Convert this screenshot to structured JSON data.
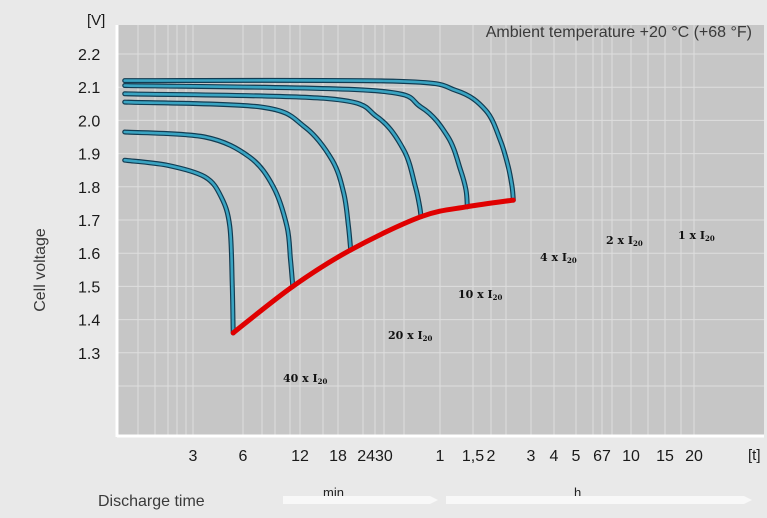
{
  "chart_data": {
    "type": "line",
    "title": "Ambient temperature +20 °C (+68 °F)",
    "ylabel": "Cell voltage",
    "xlabel": "Discharge time",
    "y_unit": "[V]",
    "x_unit": "[t]",
    "ylim": [
      1.2,
      2.2
    ],
    "y_ticks": [
      "2.2",
      "2.1",
      "2.0",
      "1.9",
      "1.8",
      "1.7",
      "1.6",
      "1.5",
      "1.4",
      "1.3"
    ],
    "x_scale": "log",
    "x_ticks_min": [
      "3",
      "6",
      "12",
      "18",
      "2430"
    ],
    "x_ticks_h": [
      "1",
      "1,5",
      "2",
      "3",
      "4",
      "5",
      "67",
      "10",
      "15",
      "20"
    ],
    "x_scale_labels": [
      "min",
      "h"
    ],
    "grid": true,
    "series": [
      {
        "name": "1 x I20",
        "points": [
          [
            0.035,
            2.12
          ],
          [
            3,
            2.118
          ],
          [
            8,
            2.09
          ],
          [
            13,
            2.03
          ],
          [
            16.5,
            1.94
          ],
          [
            18.8,
            1.86
          ],
          [
            20,
            1.8
          ],
          [
            20.4,
            1.76
          ]
        ]
      },
      {
        "name": "2 x I20",
        "points": [
          [
            0.035,
            2.105
          ],
          [
            2,
            2.09
          ],
          [
            4.5,
            2.04
          ],
          [
            7,
            1.95
          ],
          [
            8.6,
            1.85
          ],
          [
            9.4,
            1.79
          ],
          [
            9.6,
            1.74
          ]
        ]
      },
      {
        "name": "4 x I20",
        "points": [
          [
            0.035,
            2.08
          ],
          [
            1,
            2.065
          ],
          [
            2.2,
            2.01
          ],
          [
            3.4,
            1.91
          ],
          [
            4.1,
            1.8
          ],
          [
            4.4,
            1.74
          ],
          [
            4.5,
            1.71
          ]
        ]
      },
      {
        "name": "10 x I20",
        "points": [
          [
            0.035,
            2.055
          ],
          [
            0.33,
            2.04
          ],
          [
            0.67,
            1.98
          ],
          [
            1.05,
            1.88
          ],
          [
            1.27,
            1.78
          ],
          [
            1.37,
            1.68
          ],
          [
            1.42,
            1.61
          ]
        ]
      },
      {
        "name": "20 x I20",
        "points": [
          [
            0.035,
            1.965
          ],
          [
            0.13,
            1.95
          ],
          [
            0.27,
            1.89
          ],
          [
            0.4,
            1.8
          ],
          [
            0.5,
            1.68
          ],
          [
            0.53,
            1.58
          ],
          [
            0.55,
            1.5
          ]
        ]
      },
      {
        "name": "40 x I20",
        "points": [
          [
            0.035,
            1.88
          ],
          [
            0.07,
            1.865
          ],
          [
            0.13,
            1.83
          ],
          [
            0.17,
            1.77
          ],
          [
            0.196,
            1.68
          ],
          [
            0.204,
            1.5
          ],
          [
            0.207,
            1.36
          ]
        ]
      }
    ],
    "end_voltage_curve": [
      [
        0.207,
        1.36
      ],
      [
        0.55,
        1.5
      ],
      [
        1.42,
        1.61
      ],
      [
        4.5,
        1.71
      ],
      [
        9.6,
        1.74
      ],
      [
        20.4,
        1.76
      ]
    ],
    "annotations": [
      {
        "base": "1 x I",
        "sub": "20"
      },
      {
        "base": "2 x I",
        "sub": "20"
      },
      {
        "base": "4 x I",
        "sub": "20"
      },
      {
        "base": "10 x I",
        "sub": "20"
      },
      {
        "base": "20 x I",
        "sub": "20"
      },
      {
        "base": "40 x I",
        "sub": "20"
      }
    ],
    "colors": {
      "plot_bg": "#c6c6c6",
      "page_bg": "#e9e9e9",
      "grid": "#dedede",
      "curve": "#3aa4c2",
      "curve_edge": "#123c52",
      "end_curve": "#e00000"
    }
  }
}
